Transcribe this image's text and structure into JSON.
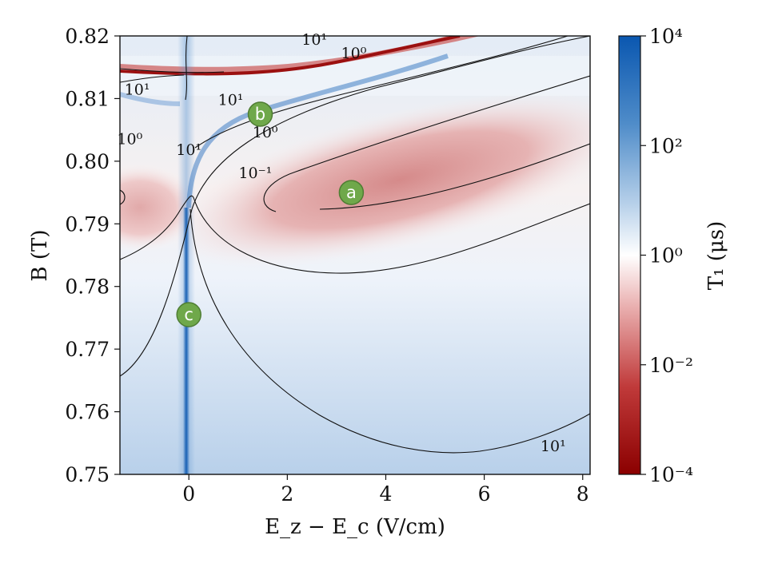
{
  "chart_data": {
    "type": "heatmap",
    "xlabel": "E_z − E_c (V/cm)",
    "ylabel": "B (T)",
    "xlim": [
      -1.4,
      8.15
    ],
    "ylim": [
      0.75,
      0.82
    ],
    "xticks": [
      0,
      2,
      4,
      6,
      8
    ],
    "xtick_labels": [
      "0",
      "2",
      "4",
      "6",
      "8"
    ],
    "yticks": [
      0.75,
      0.76,
      0.77,
      0.78,
      0.79,
      0.8,
      0.81,
      0.82
    ],
    "ytick_labels": [
      "0.75",
      "0.76",
      "0.77",
      "0.78",
      "0.79",
      "0.80",
      "0.81",
      "0.82"
    ],
    "colorbar": {
      "label": "T₁ (μs)",
      "scale": "log",
      "range": [
        0.0001,
        10000
      ],
      "ticks": [
        0.0001,
        0.01,
        1,
        100,
        10000
      ],
      "tick_labels": [
        "10⁻⁴",
        "10⁻²",
        "10⁰",
        "10²",
        "10⁴"
      ],
      "colormap_low": "#8b0000",
      "colormap_mid": "#ffffff",
      "colormap_high": "#0a57b0"
    },
    "contour_levels": [
      0.1,
      1,
      10
    ],
    "contour_labels": [
      {
        "text": "10¹",
        "x": 7.4,
        "y": 0.7537
      },
      {
        "text": "10⁻¹",
        "x": 1.35,
        "y": 0.7973
      },
      {
        "text": "10⁰",
        "x": 1.55,
        "y": 0.8038
      },
      {
        "text": "10¹",
        "x": 0.85,
        "y": 0.809
      },
      {
        "text": "10⁰",
        "x": 3.35,
        "y": 0.8164
      },
      {
        "text": "10¹",
        "x": 2.55,
        "y": 0.8186
      },
      {
        "text": "10¹",
        "x": -1.05,
        "y": 0.8106
      },
      {
        "text": "10⁰",
        "x": -1.2,
        "y": 0.8027
      },
      {
        "text": "10¹",
        "x": 0.0,
        "y": 0.801
      }
    ],
    "markers": [
      {
        "label": "a",
        "x": 3.3,
        "y": 0.795
      },
      {
        "label": "b",
        "x": 1.45,
        "y": 0.8075
      },
      {
        "label": "c",
        "x": 0.0,
        "y": 0.7755
      }
    ],
    "marker_color": "#6fa84a"
  }
}
